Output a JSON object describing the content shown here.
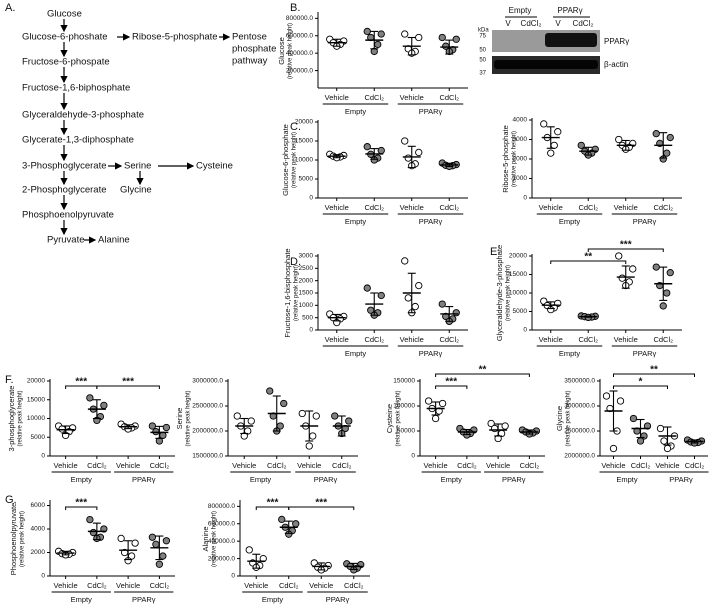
{
  "diagram": {
    "panel": "A.",
    "nodes": [
      "Glucose",
      "Glucose-6-phoshate",
      "Ribose-5-phosphate",
      "Fructose-6-phospate",
      "Fructose-1,6-biphosphate",
      "Glyceraldehyde-3-phosphate",
      "Glycerate-1,3-diphosphate",
      "3-Phosphoglycerate",
      "Serine",
      "Cysteine",
      "Glycine",
      "2-Phosphoglycerate",
      "Phosphoenolpyruvate",
      "Pyruvate",
      "Alanine"
    ],
    "pentose_phosphate_pathway": [
      "Pentose",
      "phosphate",
      "pathway"
    ]
  },
  "blot": {
    "groups": [
      "Empty",
      "PPARγ"
    ],
    "lanes": [
      "V",
      "CdCl₂",
      "V",
      "CdCl₂"
    ],
    "unit": "kDa",
    "markers": [
      "75",
      "50",
      "50",
      "37"
    ],
    "bands": [
      "PPARγ",
      "β-actin"
    ]
  },
  "chart_data": [
    {
      "type": "scatter",
      "panel": "B.",
      "ylabel": [
        "Glucose",
        "(relative peak height)"
      ],
      "categories": [
        "Vehicle",
        "CdCl₂",
        "Vehicle",
        "CdCl₂"
      ],
      "group_labels": [
        "Empty",
        "PPARγ"
      ],
      "fills": [
        "#ffffff",
        "#808080",
        "#ffffff",
        "#808080"
      ],
      "ylim": [
        0,
        850000
      ],
      "yticks": [
        {
          "value": 200000,
          "label": "200000.0"
        },
        {
          "value": 400000,
          "label": "400000.0"
        },
        {
          "value": 600000,
          "label": "600000.0"
        },
        {
          "value": 800000,
          "label": "800000.0"
        }
      ],
      "points": [
        [
          560000,
          540000,
          520000,
          500000,
          480000
        ],
        [
          650000,
          620000,
          580000,
          500000,
          420000
        ],
        [
          620000,
          580000,
          450000,
          420000,
          400000
        ],
        [
          580000,
          560000,
          480000,
          440000,
          420000
        ]
      ],
      "means": [
        520000,
        550000,
        480000,
        470000
      ],
      "sds": [
        40000,
        100000,
        100000,
        80000
      ]
    },
    {
      "type": "scatter",
      "panel": "C.",
      "ylabel": [
        "Glucose-6-phosphate",
        "(relative peak height)"
      ],
      "categories": [
        "Vehicle",
        "CdCl₂",
        "Vehicle",
        "CdCl₂"
      ],
      "group_labels": [
        "Empty",
        "PPARγ"
      ],
      "fills": [
        "#ffffff",
        "#808080",
        "#ffffff",
        "#808080"
      ],
      "ylim": [
        0,
        20000
      ],
      "yticks": [
        0,
        5000,
        10000,
        15000,
        20000
      ],
      "points": [
        [
          11500,
          11200,
          11000,
          10800,
          10600
        ],
        [
          13500,
          12500,
          11500,
          10500,
          10000
        ],
        [
          15000,
          12000,
          10500,
          9000,
          8500
        ],
        [
          9200,
          8800,
          8600,
          8500,
          8300
        ]
      ],
      "means": [
        11000,
        11600,
        10800,
        8700
      ],
      "sds": [
        400,
        1400,
        2800,
        400
      ]
    },
    {
      "type": "scatter",
      "ylabel": [
        "Ribose-5-phosphate",
        "(relative peak height)"
      ],
      "categories": [
        "Vehicle",
        "CdCl₂",
        "Vehicle",
        "CdCl₂"
      ],
      "group_labels": [
        "Empty",
        "PPARγ"
      ],
      "fills": [
        "#ffffff",
        "#808080",
        "#ffffff",
        "#808080"
      ],
      "ylim": [
        0,
        4000
      ],
      "yticks": [
        0,
        1000,
        2000,
        3000,
        4000
      ],
      "points": [
        [
          3800,
          3400,
          3100,
          2700,
          2300
        ],
        [
          2700,
          2500,
          2400,
          2300,
          2200
        ],
        [
          3000,
          2800,
          2700,
          2600,
          2500
        ],
        [
          3300,
          3100,
          2800,
          2300,
          2000
        ]
      ],
      "means": [
        3100,
        2400,
        2700,
        2700
      ],
      "sds": [
        550,
        200,
        250,
        650
      ]
    },
    {
      "type": "scatter",
      "panel": "D.",
      "ylabel": [
        "Fructose-1,6-bisphosphate",
        "(relative peak height)"
      ],
      "categories": [
        "Vehicle",
        "CdCl₂",
        "Vehicle",
        "CdCl₂"
      ],
      "group_labels": [
        "Empty",
        "PPARγ"
      ],
      "fills": [
        "#ffffff",
        "#808080",
        "#ffffff",
        "#808080"
      ],
      "ylim": [
        0,
        3000
      ],
      "yticks": [
        0,
        500,
        1000,
        1500,
        2000,
        2500,
        3000
      ],
      "points": [
        [
          650,
          550,
          500,
          450,
          300
        ],
        [
          1700,
          1400,
          800,
          700,
          600
        ],
        [
          2800,
          1800,
          1300,
          950,
          700
        ],
        [
          1050,
          700,
          550,
          450,
          350
        ]
      ],
      "means": [
        500,
        1050,
        1500,
        650
      ],
      "sds": [
        130,
        450,
        800,
        300
      ]
    },
    {
      "type": "scatter",
      "panel": "E.",
      "ylabel": [
        "Glyceraldehyde-3-phosphate",
        "(relative peak height)"
      ],
      "categories": [
        "Vehicle",
        "CdCl₂",
        "Vehicle",
        "CdCl₂"
      ],
      "group_labels": [
        "Empty",
        "PPARγ"
      ],
      "fills": [
        "#ffffff",
        "#808080",
        "#ffffff",
        "#808080"
      ],
      "ylim": [
        0,
        20000
      ],
      "yticks": [
        0,
        5000,
        10000,
        15000,
        20000
      ],
      "points": [
        [
          7800,
          7200,
          6600,
          6000,
          5500
        ],
        [
          3800,
          3700,
          3600,
          3500,
          3400
        ],
        [
          20000,
          16500,
          14000,
          13000,
          12000
        ],
        [
          17000,
          15500,
          12000,
          10000,
          6500
        ]
      ],
      "means": [
        6700,
        3600,
        14300,
        12500
      ],
      "sds": [
        900,
        150,
        3000,
        4500
      ],
      "significance": [
        {
          "from": 0,
          "to": 2,
          "label": "**"
        },
        {
          "from": 1,
          "to": 3,
          "label": "***"
        }
      ]
    },
    {
      "type": "scatter",
      "panel": "F.",
      "ylabel": [
        "3-phosphoglycerate",
        "(relative peak height)"
      ],
      "categories": [
        "Vehicle",
        "CdCl₂",
        "Vehicle",
        "CdCl₂"
      ],
      "group_labels": [
        "Empty",
        "PPARγ"
      ],
      "fills": [
        "#ffffff",
        "#808080",
        "#ffffff",
        "#808080"
      ],
      "ylim": [
        0,
        20000
      ],
      "yticks": [
        0,
        5000,
        10000,
        15000,
        20000
      ],
      "points": [
        [
          8000,
          7500,
          7200,
          6500,
          5500
        ],
        [
          15500,
          13500,
          12500,
          10500,
          9500
        ],
        [
          8500,
          8000,
          7800,
          7500,
          7200
        ],
        [
          8000,
          7600,
          6500,
          5500,
          4000
        ]
      ],
      "means": [
        7000,
        12500,
        7800,
        6300
      ],
      "sds": [
        1000,
        2500,
        500,
        1600
      ],
      "significance": [
        {
          "from": 0,
          "to": 1,
          "label": "***"
        },
        {
          "from": 1,
          "to": 3,
          "label": "***"
        }
      ]
    },
    {
      "type": "scatter",
      "ylabel": [
        "Serine",
        "(relative peak height)"
      ],
      "categories": [
        "Vehicle",
        "CdCl₂",
        "Vehicle",
        "CdCl₂"
      ],
      "group_labels": [
        "Empty",
        "PPARγ"
      ],
      "fills": [
        "#ffffff",
        "#808080",
        "#ffffff",
        "#808080"
      ],
      "ylim": [
        1500000,
        3000000
      ],
      "yticks": [
        {
          "value": 1500000,
          "label": "1500000.0"
        },
        {
          "value": 2000000,
          "label": "2000000.0"
        },
        {
          "value": 2500000,
          "label": "2500000.0"
        },
        {
          "value": 3000000,
          "label": "3000000.0"
        }
      ],
      "points": [
        [
          2300000,
          2200000,
          2100000,
          2000000,
          1900000
        ],
        [
          2800000,
          2550000,
          2300000,
          2100000,
          2000000
        ],
        [
          2350000,
          2300000,
          2100000,
          1900000,
          1700000
        ],
        [
          2300000,
          2200000,
          2100000,
          2050000,
          1950000
        ]
      ],
      "means": [
        2100000,
        2350000,
        2100000,
        2100000
      ],
      "sds": [
        150000,
        350000,
        300000,
        200000
      ]
    },
    {
      "type": "scatter",
      "ylabel": [
        "Cysteine",
        "(relative peak height)"
      ],
      "categories": [
        "Vehicle",
        "CdCl₂",
        "Vehicle",
        "CdCl₂"
      ],
      "group_labels": [
        "Empty",
        "PPARγ"
      ],
      "fills": [
        "#ffffff",
        "#808080",
        "#ffffff",
        "#808080"
      ],
      "ylim": [
        0,
        150000
      ],
      "yticks": [
        0,
        50000,
        100000,
        150000
      ],
      "points": [
        [
          110000,
          105000,
          95000,
          90000,
          75000
        ],
        [
          55000,
          52000,
          48000,
          45000,
          42000
        ],
        [
          65000,
          60000,
          55000,
          45000,
          35000
        ],
        [
          52000,
          50000,
          48000,
          46000,
          44000
        ]
      ],
      "means": [
        95000,
        48000,
        52000,
        48000
      ],
      "sds": [
        13000,
        5000,
        12000,
        4000
      ],
      "significance": [
        {
          "from": 0,
          "to": 1,
          "label": "***"
        },
        {
          "from": 0,
          "to": 3,
          "label": "**"
        }
      ]
    },
    {
      "type": "scatter",
      "ylabel": [
        "Glycine",
        "(relative peak height)"
      ],
      "categories": [
        "Vehicle",
        "CdCl₂",
        "Vehicle",
        "CdCl₂"
      ],
      "group_labels": [
        "Empty",
        "PPARγ"
      ],
      "fills": [
        "#ffffff",
        "#808080",
        "#ffffff",
        "#808080"
      ],
      "ylim": [
        2000000,
        3500000
      ],
      "yticks": [
        {
          "value": 2000000,
          "label": "2000000.0"
        },
        {
          "value": 2500000,
          "label": "2500000.0"
        },
        {
          "value": 3000000,
          "label": "3000000.0"
        },
        {
          "value": 3500000,
          "label": "3500000.0"
        }
      ],
      "points": [
        [
          3200000,
          3100000,
          2950000,
          2500000,
          2150000
        ],
        [
          2750000,
          2600000,
          2500000,
          2400000,
          2300000
        ],
        [
          2550000,
          2400000,
          2300000,
          2200000,
          2150000
        ],
        [
          2320000,
          2300000,
          2280000,
          2270000,
          2260000
        ]
      ],
      "means": [
        2900000,
        2550000,
        2400000,
        2290000
      ],
      "sds": [
        400000,
        180000,
        180000,
        30000
      ],
      "significance": [
        {
          "from": 0,
          "to": 2,
          "label": "*"
        },
        {
          "from": 0,
          "to": 3,
          "label": "**"
        }
      ]
    },
    {
      "type": "scatter",
      "panel": "G.",
      "ylabel": [
        "Phosphoenolpyruvate",
        "(relative peak height)"
      ],
      "categories": [
        "Vehicle",
        "CdCl₂",
        "Vehicle",
        "CdCl₂"
      ],
      "group_labels": [
        "Empty",
        "PPARγ"
      ],
      "fills": [
        "#ffffff",
        "#808080",
        "#ffffff",
        "#808080"
      ],
      "ylim": [
        0,
        6300
      ],
      "yticks": [
        0,
        2000,
        4000,
        6000
      ],
      "points": [
        [
          2100,
          2000,
          1900,
          1850,
          1800
        ],
        [
          4800,
          4000,
          3700,
          3300,
          3200
        ],
        [
          3200,
          2800,
          2000,
          1700,
          1300
        ],
        [
          3300,
          3000,
          2700,
          1700,
          1000
        ]
      ],
      "means": [
        1950,
        3800,
        2200,
        2400
      ],
      "sds": [
        150,
        700,
        800,
        1000
      ],
      "significance": [
        {
          "from": 0,
          "to": 1,
          "label": "***"
        }
      ]
    },
    {
      "type": "scatter",
      "ylabel": [
        "Alanine",
        "(relative peak height)"
      ],
      "categories": [
        "Vehicle",
        "CdCl₂",
        "Vehicle",
        "CdCl₂"
      ],
      "group_labels": [
        "Empty",
        "PPARγ"
      ],
      "fills": [
        "#ffffff",
        "#808080",
        "#ffffff",
        "#808080"
      ],
      "ylim": [
        0,
        850000
      ],
      "yticks": [
        0,
        {
          "value": 200000,
          "label": "200000.0"
        },
        {
          "value": 400000,
          "label": "400000.0"
        },
        {
          "value": 600000,
          "label": "600000.0"
        },
        {
          "value": 800000,
          "label": "800000.0"
        }
      ],
      "points": [
        [
          300000,
          200000,
          150000,
          120000,
          100000
        ],
        [
          650000,
          600000,
          560000,
          520000,
          480000
        ],
        [
          150000,
          120000,
          100000,
          90000,
          70000
        ],
        [
          140000,
          130000,
          110000,
          90000,
          70000
        ]
      ],
      "means": [
        170000,
        560000,
        110000,
        110000
      ],
      "sds": [
        80000,
        70000,
        40000,
        35000
      ],
      "significance": [
        {
          "from": 0,
          "to": 1,
          "label": "***"
        },
        {
          "from": 1,
          "to": 3,
          "label": "***"
        }
      ]
    }
  ]
}
